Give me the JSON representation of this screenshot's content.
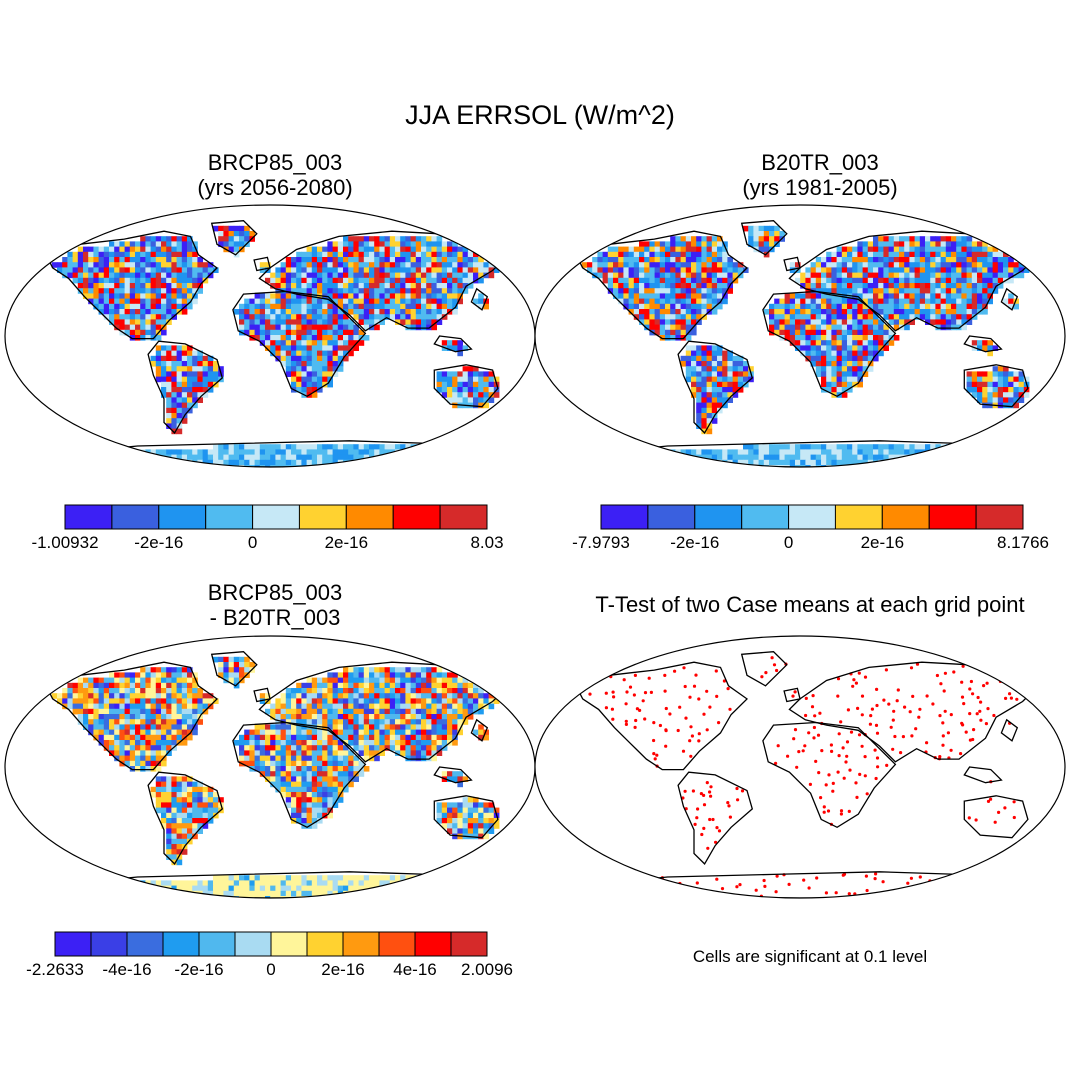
{
  "figure": {
    "title": "JJA ERRSOL (W/m^2)",
    "panels": [
      {
        "id": "top-left",
        "title_line1": "BRCP85_003",
        "title_line2": "(yrs 2056-2080)",
        "colorbar": {
          "colors": [
            "#3c20f5",
            "#3a60df",
            "#1f94f0",
            "#50bbf0",
            "#c6e8f6",
            "#ffd230",
            "#ff8a00",
            "#ff0000",
            "#d62a2a"
          ],
          "labels": [
            {
              "text": "-1.00932",
              "boundary": 0
            },
            {
              "text": "-2e-16",
              "boundary": 2
            },
            {
              "text": "0",
              "boundary": 4
            },
            {
              "text": "2e-16",
              "boundary": 6
            },
            {
              "text": "8.03",
              "boundary": 9
            }
          ]
        }
      },
      {
        "id": "top-right",
        "title_line1": "B20TR_003",
        "title_line2": "(yrs 1981-2005)",
        "colorbar": {
          "colors": [
            "#3c20f5",
            "#3a60df",
            "#1f94f0",
            "#50bbf0",
            "#c6e8f6",
            "#ffd230",
            "#ff8a00",
            "#ff0000",
            "#d62a2a"
          ],
          "labels": [
            {
              "text": "-7.9793",
              "boundary": 0
            },
            {
              "text": "-2e-16",
              "boundary": 2
            },
            {
              "text": "0",
              "boundary": 4
            },
            {
              "text": "2e-16",
              "boundary": 6
            },
            {
              "text": "8.1766",
              "boundary": 9
            }
          ]
        }
      },
      {
        "id": "bottom-left",
        "title_line1": "BRCP85_003",
        "title_line2": "- B20TR_003",
        "colorbar": {
          "colors": [
            "#3c20f5",
            "#3a3fe6",
            "#3a6ddf",
            "#1f9cf0",
            "#50b8ee",
            "#a9dbf2",
            "#fff59a",
            "#ffd230",
            "#ff9a10",
            "#ff5010",
            "#ff0000",
            "#d62a2a"
          ],
          "labels": [
            {
              "text": "-2.2633",
              "boundary": 0
            },
            {
              "text": "-4e-16",
              "boundary": 2
            },
            {
              "text": "-2e-16",
              "boundary": 4
            },
            {
              "text": "0",
              "boundary": 6
            },
            {
              "text": "2e-16",
              "boundary": 8
            },
            {
              "text": "4e-16",
              "boundary": 10
            },
            {
              "text": "2.0096",
              "boundary": 12
            }
          ]
        }
      },
      {
        "id": "bottom-right",
        "title_line1": "T-Test of two Case means at each grid point",
        "note": "Cells are significant at 0.1 level",
        "marker_color": "#ff0000"
      }
    ]
  }
}
